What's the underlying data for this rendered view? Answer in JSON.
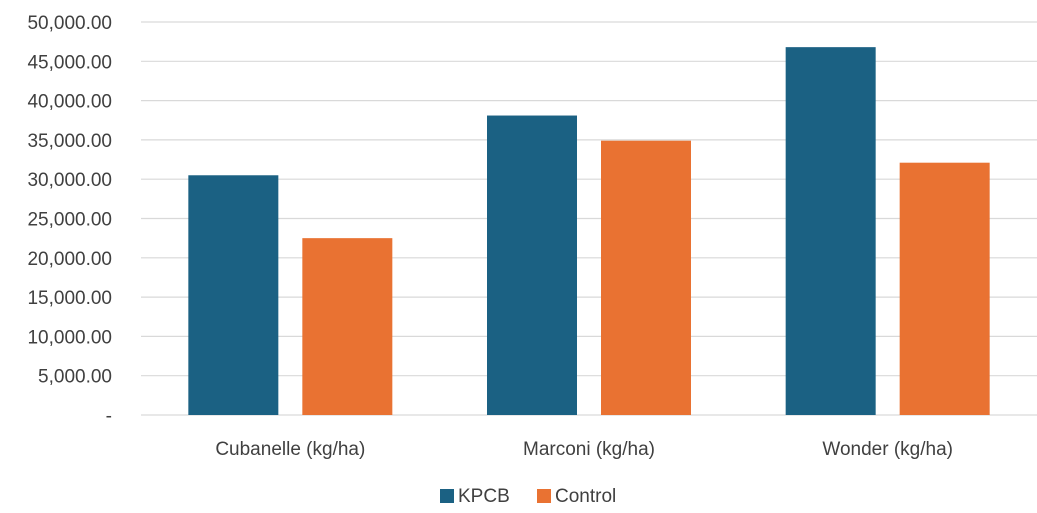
{
  "chart_data": {
    "type": "bar",
    "title": "",
    "xlabel": "",
    "ylabel": "",
    "categories": [
      "Cubanelle (kg/ha)",
      "Marconi (kg/ha)",
      "Wonder (kg/ha)"
    ],
    "series": [
      {
        "name": "KPCB",
        "color": "#1b6183",
        "values": [
          30500,
          38100,
          46800
        ]
      },
      {
        "name": "Control",
        "color": "#e97232",
        "values": [
          22500,
          34900,
          32100
        ]
      }
    ],
    "ylim": [
      0,
      50000
    ],
    "yticks": [
      0,
      5000,
      10000,
      15000,
      20000,
      25000,
      30000,
      35000,
      40000,
      45000,
      50000
    ],
    "ytick_labels": [
      "-",
      "5,000.00",
      "10,000.00",
      "15,000.00",
      "20,000.00",
      "25,000.00",
      "30,000.00",
      "35,000.00",
      "40,000.00",
      "45,000.00",
      "50,000.00"
    ],
    "grid": true,
    "legend_position": "bottom"
  }
}
